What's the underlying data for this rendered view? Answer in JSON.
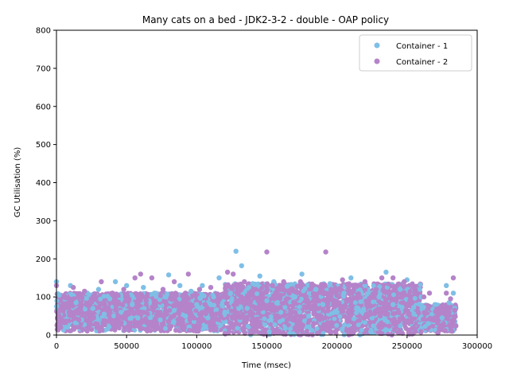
{
  "chart_data": {
    "type": "scatter",
    "title": "Many cats on a bed - JDK2-3-2 - double -  OAP policy",
    "xlabel": "Time (msec)",
    "ylabel": "GC Utilisation (%)",
    "xlim": [
      0,
      300000
    ],
    "ylim": [
      0,
      800
    ],
    "xticks": [
      0,
      50000,
      100000,
      150000,
      200000,
      250000,
      300000
    ],
    "xtick_labels": [
      "0",
      "50000",
      "100000",
      "150000",
      "200000",
      "250000",
      "300000"
    ],
    "yticks": [
      0,
      100,
      200,
      300,
      400,
      500,
      600,
      700,
      800
    ],
    "ytick_labels": [
      "0",
      "100",
      "200",
      "300",
      "400",
      "500",
      "600",
      "700",
      "800"
    ],
    "legend_position": "top-right",
    "grid": false,
    "series": [
      {
        "name": "Container - 1",
        "color": "#7fbfe6",
        "points": [
          [
            0,
            140
          ],
          [
            2000,
            105
          ],
          [
            5000,
            20
          ],
          [
            8000,
            60
          ],
          [
            10000,
            130
          ],
          [
            14000,
            85
          ],
          [
            18000,
            40
          ],
          [
            22000,
            110
          ],
          [
            26000,
            70
          ],
          [
            30000,
            120
          ],
          [
            34000,
            55
          ],
          [
            38000,
            95
          ],
          [
            42000,
            140
          ],
          [
            46000,
            60
          ],
          [
            50000,
            130
          ],
          [
            54000,
            80
          ],
          [
            58000,
            45
          ],
          [
            62000,
            125
          ],
          [
            66000,
            90
          ],
          [
            70000,
            110
          ],
          [
            74000,
            40
          ],
          [
            78000,
            100
          ],
          [
            80000,
            158
          ],
          [
            84000,
            65
          ],
          [
            88000,
            130
          ],
          [
            92000,
            50
          ],
          [
            96000,
            115
          ],
          [
            100000,
            80
          ],
          [
            104000,
            130
          ],
          [
            108000,
            45
          ],
          [
            112000,
            100
          ],
          [
            116000,
            150
          ],
          [
            120000,
            60
          ],
          [
            124000,
            110
          ],
          [
            128000,
            220
          ],
          [
            132000,
            182
          ],
          [
            136000,
            70
          ],
          [
            140000,
            135
          ],
          [
            145000,
            155
          ],
          [
            150000,
            90
          ],
          [
            155000,
            140
          ],
          [
            160000,
            60
          ],
          [
            165000,
            130
          ],
          [
            170000,
            100
          ],
          [
            175000,
            160
          ],
          [
            180000,
            50
          ],
          [
            185000,
            120
          ],
          [
            190000,
            80
          ],
          [
            195000,
            135
          ],
          [
            200000,
            60
          ],
          [
            205000,
            110
          ],
          [
            210000,
            150
          ],
          [
            215000,
            70
          ],
          [
            220000,
            130
          ],
          [
            225000,
            45
          ],
          [
            230000,
            100
          ],
          [
            235000,
            165
          ],
          [
            240000,
            80
          ],
          [
            245000,
            120
          ],
          [
            250000,
            145
          ],
          [
            255000,
            55
          ],
          [
            260000,
            100
          ],
          [
            265000,
            30
          ],
          [
            270000,
            80
          ],
          [
            275000,
            45
          ],
          [
            278000,
            130
          ],
          [
            280000,
            85
          ],
          [
            282000,
            60
          ],
          [
            284000,
            70
          ],
          [
            283000,
            110
          ]
        ]
      },
      {
        "name": "Container - 2",
        "color": "#b583c9",
        "points": [
          [
            0,
            130
          ],
          [
            3000,
            20
          ],
          [
            6000,
            100
          ],
          [
            9000,
            60
          ],
          [
            12000,
            125
          ],
          [
            16000,
            40
          ],
          [
            20000,
            115
          ],
          [
            24000,
            80
          ],
          [
            28000,
            30
          ],
          [
            32000,
            140
          ],
          [
            36000,
            70
          ],
          [
            40000,
            110
          ],
          [
            44000,
            50
          ],
          [
            48000,
            120
          ],
          [
            52000,
            25
          ],
          [
            56000,
            150
          ],
          [
            60000,
            160
          ],
          [
            64000,
            90
          ],
          [
            68000,
            150
          ],
          [
            72000,
            60
          ],
          [
            76000,
            120
          ],
          [
            80000,
            35
          ],
          [
            84000,
            140
          ],
          [
            88000,
            70
          ],
          [
            92000,
            110
          ],
          [
            94000,
            160
          ],
          [
            98000,
            45
          ],
          [
            102000,
            120
          ],
          [
            106000,
            80
          ],
          [
            110000,
            125
          ],
          [
            114000,
            55
          ],
          [
            118000,
            100
          ],
          [
            122000,
            165
          ],
          [
            126000,
            160
          ],
          [
            130000,
            90
          ],
          [
            134000,
            140
          ],
          [
            138000,
            60
          ],
          [
            142000,
            120
          ],
          [
            146000,
            100
          ],
          [
            150000,
            218
          ],
          [
            154000,
            130
          ],
          [
            158000,
            70
          ],
          [
            162000,
            140
          ],
          [
            166000,
            110
          ],
          [
            170000,
            60
          ],
          [
            174000,
            140
          ],
          [
            178000,
            90
          ],
          [
            182000,
            130
          ],
          [
            186000,
            50
          ],
          [
            192000,
            218
          ],
          [
            196000,
            120
          ],
          [
            200000,
            80
          ],
          [
            204000,
            145
          ],
          [
            208000,
            60
          ],
          [
            212000,
            130
          ],
          [
            216000,
            100
          ],
          [
            220000,
            140
          ],
          [
            224000,
            55
          ],
          [
            228000,
            120
          ],
          [
            232000,
            150
          ],
          [
            236000,
            80
          ],
          [
            240000,
            150
          ],
          [
            244000,
            60
          ],
          [
            248000,
            140
          ],
          [
            252000,
            90
          ],
          [
            258000,
            60
          ],
          [
            262000,
            100
          ],
          [
            266000,
            110
          ],
          [
            270000,
            40
          ],
          [
            274000,
            60
          ],
          [
            276000,
            30
          ],
          [
            278000,
            110
          ],
          [
            280000,
            60
          ],
          [
            282000,
            10
          ],
          [
            283000,
            150
          ],
          [
            284000,
            65
          ],
          [
            281000,
            95
          ],
          [
            272000,
            5
          ]
        ]
      }
    ]
  }
}
